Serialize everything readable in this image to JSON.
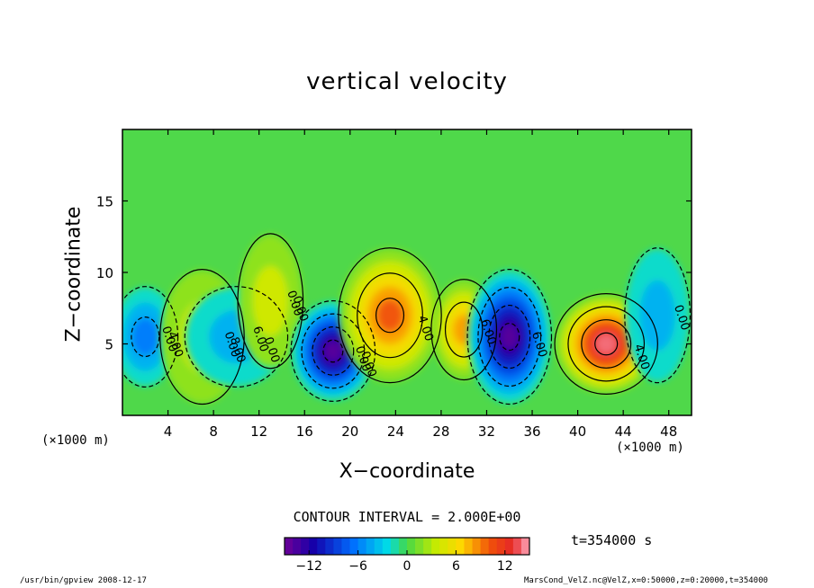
{
  "chart_data": {
    "type": "heatmap",
    "title": "vertical velocity",
    "xlabel": "X−coordinate",
    "ylabel": "Z−coordinate",
    "x_unit": "(×1000 m)",
    "xlim": [
      0,
      50
    ],
    "ylim": [
      0,
      20
    ],
    "x_ticks": [
      "4",
      "8",
      "12",
      "16",
      "20",
      "24",
      "28",
      "32",
      "36",
      "40",
      "44",
      "48"
    ],
    "y_ticks": [
      "5",
      "10",
      "15"
    ],
    "contour_interval_label": "CONTOUR INTERVAL = 2.000E+00",
    "time_label": "t=354000 s",
    "colorbar": {
      "range": [
        -15,
        15
      ],
      "ticks": [
        "−12",
        "−6",
        "0",
        "6",
        "12"
      ],
      "tick_values": [
        -12,
        -6,
        0,
        6,
        12
      ]
    },
    "contour_labels": [
      "0.00",
      "0.00",
      "0.00",
      "0.00",
      "0.00",
      "4.00",
      "6.00",
      "6.00",
      "4.00",
      "0.00",
      "4.00",
      "8.00",
      "6.00",
      "0.00",
      "0.00"
    ],
    "features": [
      {
        "x": 2,
        "z": 5.5,
        "value": -6
      },
      {
        "x": 7,
        "z": 5.5,
        "value": 4
      },
      {
        "x": 10,
        "z": 5.5,
        "value": -4
      },
      {
        "x": 13,
        "z": 8,
        "value": 3
      },
      {
        "x": 18.5,
        "z": 4.5,
        "value": -13
      },
      {
        "x": 23.5,
        "z": 7,
        "value": 9
      },
      {
        "x": 30,
        "z": 6,
        "value": 7
      },
      {
        "x": 34,
        "z": 5.5,
        "value": -14
      },
      {
        "x": 42.5,
        "z": 5,
        "value": 14
      },
      {
        "x": 47,
        "z": 7,
        "value": -3
      }
    ]
  },
  "footer": {
    "left": "/usr/bin/gpview  2008-12-17",
    "right": "MarsCond_VelZ.nc@VelZ,x=0:50000,z=0:20000,t=354000"
  }
}
